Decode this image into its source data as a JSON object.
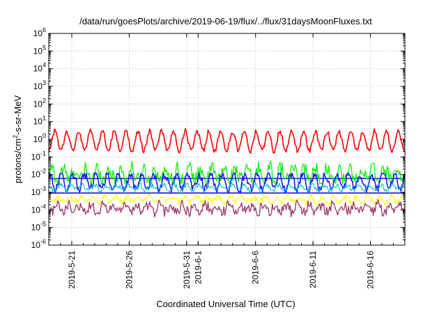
{
  "chart_data": {
    "type": "line",
    "title": "/data/run/goesPlots/archive/2019-06-19/flux/../flux/31daysMoonFluxes.txt",
    "xlabel": "Coordinated Universal Time (UTC)",
    "ylabel": {
      "prefix": "protons/cm",
      "sup": "2",
      "suffix": "-s-sr-MeV"
    },
    "scale": {
      "y": "log"
    },
    "ylim": [
      1e-06,
      1000000.0
    ],
    "xlim": [
      "2019-05-19",
      "2019-06-19"
    ],
    "grid": true,
    "y_ticks": [
      {
        "value": 1e-06,
        "base": "10",
        "exp": "-6"
      },
      {
        "value": 1e-05,
        "base": "10",
        "exp": "-5"
      },
      {
        "value": 0.0001,
        "base": "10",
        "exp": "-4"
      },
      {
        "value": 0.001,
        "base": "10",
        "exp": "-3"
      },
      {
        "value": 0.01,
        "base": "10",
        "exp": "-2"
      },
      {
        "value": 0.1,
        "base": "10",
        "exp": "-1"
      },
      {
        "value": 1,
        "base": "10",
        "exp": "0"
      },
      {
        "value": 10,
        "base": "10",
        "exp": "1"
      },
      {
        "value": 100,
        "base": "10",
        "exp": "2"
      },
      {
        "value": 1000,
        "base": "10",
        "exp": "3"
      },
      {
        "value": 10000,
        "base": "10",
        "exp": "4"
      },
      {
        "value": 100000,
        "base": "10",
        "exp": "5"
      },
      {
        "value": 1000000,
        "base": "10",
        "exp": "6"
      }
    ],
    "x_ticks": [
      {
        "date": "2019-05-21",
        "label": "2019-5-21"
      },
      {
        "date": "2019-05-26",
        "label": "2019-5-26"
      },
      {
        "date": "2019-05-31",
        "label": "2019-5-31"
      },
      {
        "date": "2019-06-01",
        "label": "2019-6-1"
      },
      {
        "date": "2019-06-06",
        "label": "2019-6-6"
      },
      {
        "date": "2019-06-11",
        "label": "2019-6-11"
      },
      {
        "date": "2019-06-16",
        "label": "2019-6-16"
      }
    ],
    "series": [
      {
        "color": "#00ee00",
        "level": 0.01,
        "amp": 0.35,
        "period_days": 1.0,
        "noise": 0.45,
        "min": 0.003,
        "max": 0.12,
        "width": 1.2
      },
      {
        "color": "#1a1aff",
        "level": 0.004,
        "amp": 0.45,
        "period_days": 1.0,
        "noise": 0.25,
        "min": 0.001,
        "max": 0.012,
        "width": 1.6
      },
      {
        "color": "#00c0c0",
        "level": 0.0018,
        "amp": 0.15,
        "period_days": 1.0,
        "noise": 0.15,
        "min": 0.0009,
        "max": 0.004,
        "width": 1.1
      },
      {
        "color": "#ffff00",
        "level": 0.0004,
        "amp": 0.15,
        "period_days": 1.0,
        "noise": 0.2,
        "min": 0.0001,
        "max": 0.0012,
        "width": 1.2
      },
      {
        "color": "#993366",
        "level": 0.00012,
        "amp": 0.2,
        "period_days": 1.0,
        "noise": 0.3,
        "min": 5e-06,
        "max": 0.0004,
        "width": 1.3
      },
      {
        "color": "#ff0000",
        "level": 0.8,
        "amp": 0.55,
        "period_days": 1.03,
        "noise": 0.15,
        "min": 0.05,
        "max": 20,
        "width": 1.6
      }
    ],
    "reference_lines": [
      {
        "color": "#1a1aff",
        "value": 0.006
      },
      {
        "color": "#1a1aff",
        "value": 0.0009
      }
    ]
  }
}
